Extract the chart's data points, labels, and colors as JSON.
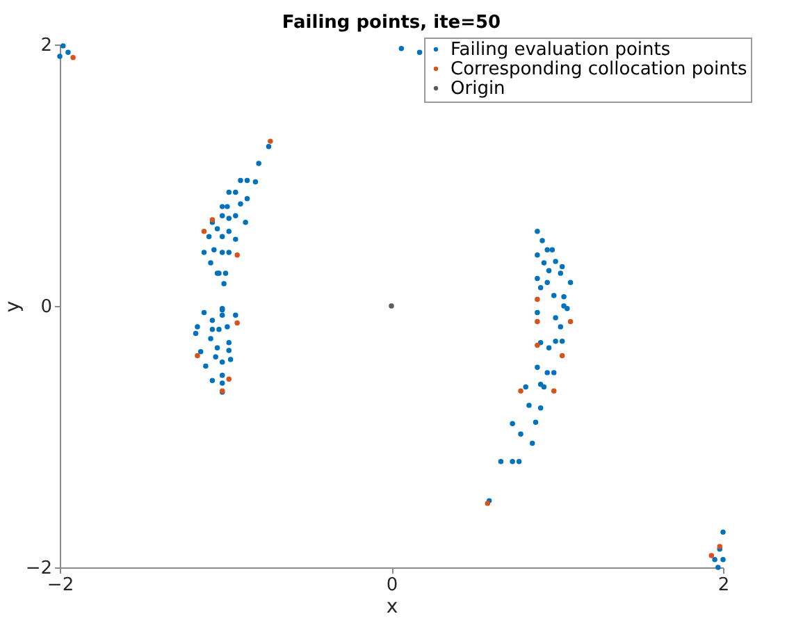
{
  "chart_data": {
    "type": "scatter",
    "title": "Failing points, ite=50",
    "xlabel": "x",
    "ylabel": "y",
    "xlim": [
      -2,
      2
    ],
    "ylim": [
      -2,
      2
    ],
    "xticks": [
      -2,
      0,
      2
    ],
    "yticks": [
      -2,
      0,
      2
    ],
    "grid": false,
    "legend": "top right",
    "marker": "circle",
    "series": [
      {
        "name": "Failing evaluation points",
        "color": "#0072bd",
        "x": [
          -0.74,
          -0.8,
          -0.87,
          -0.91,
          -0.94,
          -0.82,
          -0.87,
          -0.98,
          -0.99,
          -0.91,
          -0.94,
          -1.02,
          -1.02,
          -1.08,
          -1.05,
          -0.98,
          -0.98,
          -0.88,
          -0.94,
          -1.1,
          -1.07,
          -1.02,
          -1.02,
          -1.13,
          -1.09,
          -1.05,
          -0.98,
          -1.0,
          -1.04,
          -1.01,
          -1.13,
          -1.02,
          -0.94,
          -1.17,
          -1.08,
          -1.02,
          -1.04,
          -1.18,
          -1.08,
          -1.02,
          -1.09,
          -1.15,
          -0.99,
          -0.98,
          -1.05,
          -1.12,
          -0.98,
          -0.97,
          -1.06,
          -1.08,
          -1.02,
          -1.02,
          -1.02,
          -1.02,
          0.88,
          0.91,
          0.94,
          0.97,
          0.99,
          0.88,
          0.92,
          0.95,
          1.03,
          1.02,
          0.88,
          0.94,
          1.08,
          1.04,
          0.9,
          0.98,
          1.06,
          0.88,
          1.04,
          0.99,
          0.9,
          1.02,
          1.03,
          0.95,
          0.88,
          0.81,
          0.99,
          0.98,
          0.94,
          0.9,
          0.92,
          0.83,
          0.73,
          0.9,
          0.78,
          0.66,
          0.85,
          0.77,
          0.87,
          0.73,
          0.59,
          -1.98,
          -1.95,
          -2.0,
          0.06,
          0.17,
          2.0,
          1.98,
          2.0,
          1.95,
          1.97
        ],
        "values": [
          1.22,
          1.09,
          0.96,
          0.96,
          0.87,
          0.95,
          0.82,
          0.87,
          0.76,
          0.78,
          0.69,
          0.76,
          0.69,
          0.64,
          0.59,
          0.67,
          0.57,
          0.64,
          0.51,
          0.53,
          0.43,
          0.53,
          0.41,
          0.41,
          0.33,
          0.25,
          0.41,
          0.25,
          0.25,
          0.17,
          -0.05,
          -0.03,
          -0.07,
          -0.16,
          -0.11,
          -0.02,
          -0.18,
          -0.21,
          -0.18,
          -0.07,
          -0.25,
          -0.35,
          -0.16,
          -0.28,
          -0.32,
          -0.46,
          -0.34,
          -0.41,
          -0.39,
          -0.57,
          -0.43,
          -0.53,
          -0.59,
          -0.66,
          0.57,
          0.5,
          0.43,
          0.43,
          0.34,
          0.39,
          0.33,
          0.27,
          0.3,
          0.25,
          0.21,
          0.18,
          0.18,
          0.07,
          0.14,
          0.08,
          -0.02,
          -0.05,
          0.0,
          -0.09,
          -0.28,
          -0.16,
          -0.27,
          -0.32,
          -0.47,
          -0.62,
          -0.27,
          -0.51,
          -0.51,
          -0.6,
          -0.62,
          -0.76,
          -0.9,
          -0.78,
          -0.98,
          -1.19,
          -1.05,
          -1.19,
          -0.89,
          -1.19,
          -1.49,
          1.99,
          1.94,
          1.91,
          1.97,
          1.94,
          -1.73,
          -1.86,
          -1.94,
          -1.94,
          -2.0
        ]
      },
      {
        "name": "Corresponding collocation points",
        "color": "#d95319",
        "x": [
          -0.73,
          -1.08,
          -1.13,
          -0.93,
          -0.93,
          -1.17,
          -0.98,
          -1.02,
          0.88,
          1.08,
          0.88,
          0.88,
          1.03,
          0.78,
          0.98,
          0.58,
          -1.92,
          1.93,
          1.98
        ],
        "values": [
          1.26,
          0.66,
          0.57,
          0.39,
          -0.13,
          -0.38,
          -0.56,
          -0.65,
          0.05,
          -0.12,
          -0.12,
          -0.3,
          -0.38,
          -0.65,
          -0.65,
          -1.51,
          1.9,
          -1.91,
          -1.84
        ]
      },
      {
        "name": "Origin",
        "color": "#5a5a5a",
        "x": [
          0
        ],
        "values": [
          0
        ]
      }
    ]
  }
}
